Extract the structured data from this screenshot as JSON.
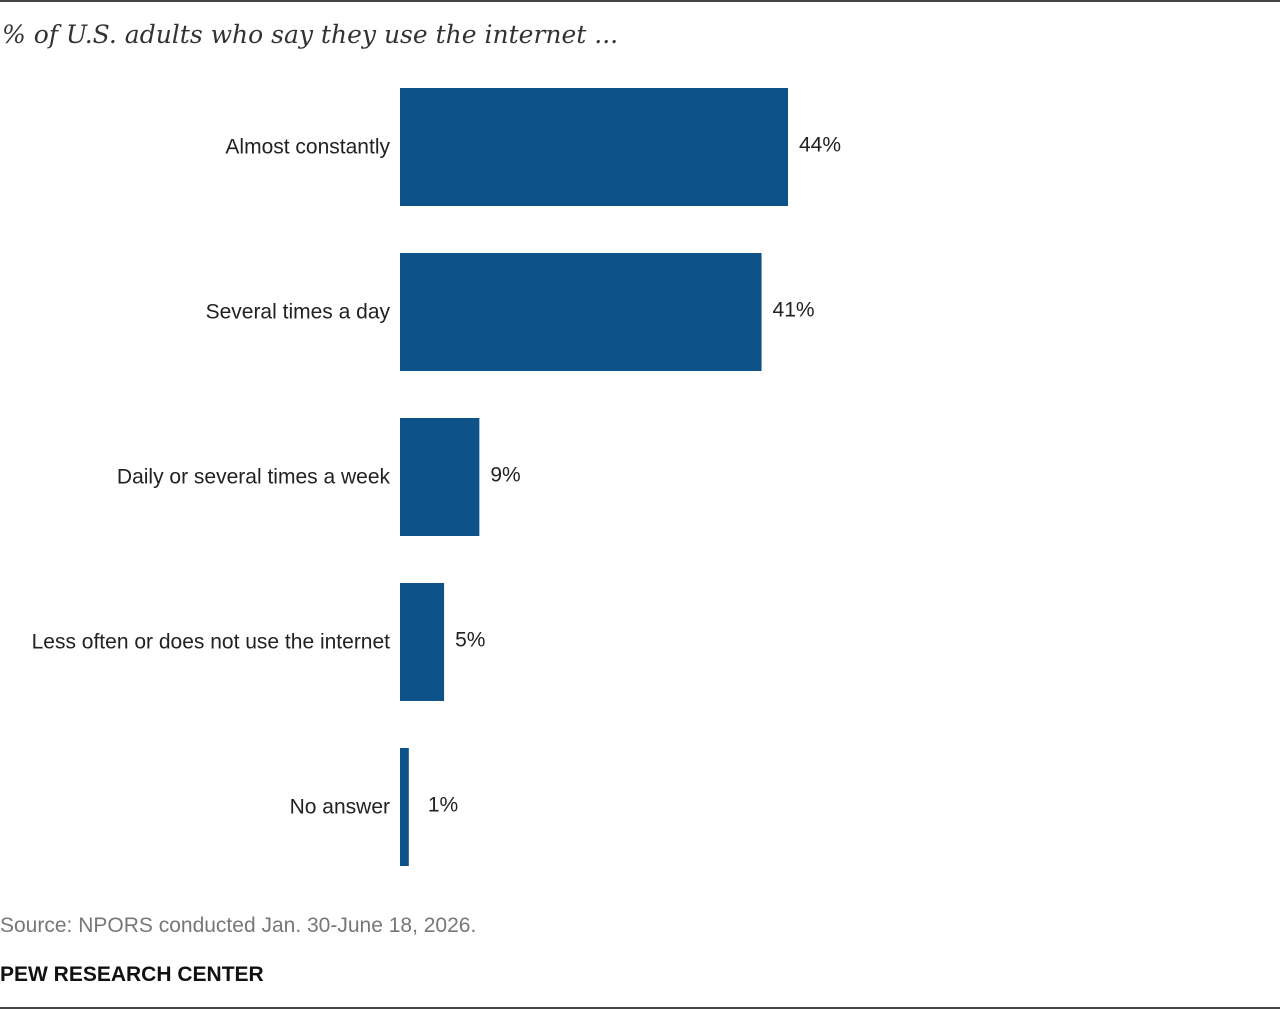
{
  "chart_data": {
    "type": "bar",
    "orientation": "horizontal",
    "title": "% of U.S. adults who say they use the internet ...",
    "categories": [
      "Almost constantly",
      "Several times a day",
      "Daily or several times a week",
      "Less often or does not use the internet",
      "No answer"
    ],
    "values": [
      44,
      41,
      9,
      5,
      1
    ],
    "data_labels": [
      "44%",
      "41%",
      "9%",
      "5%",
      "1%"
    ],
    "bar_color": "#0d5288",
    "grid": false,
    "legend": "none"
  },
  "footer": {
    "source": "Source: NPORS conducted Jan. 30-June 18, 2026.",
    "organization": "PEW RESEARCH CENTER"
  }
}
